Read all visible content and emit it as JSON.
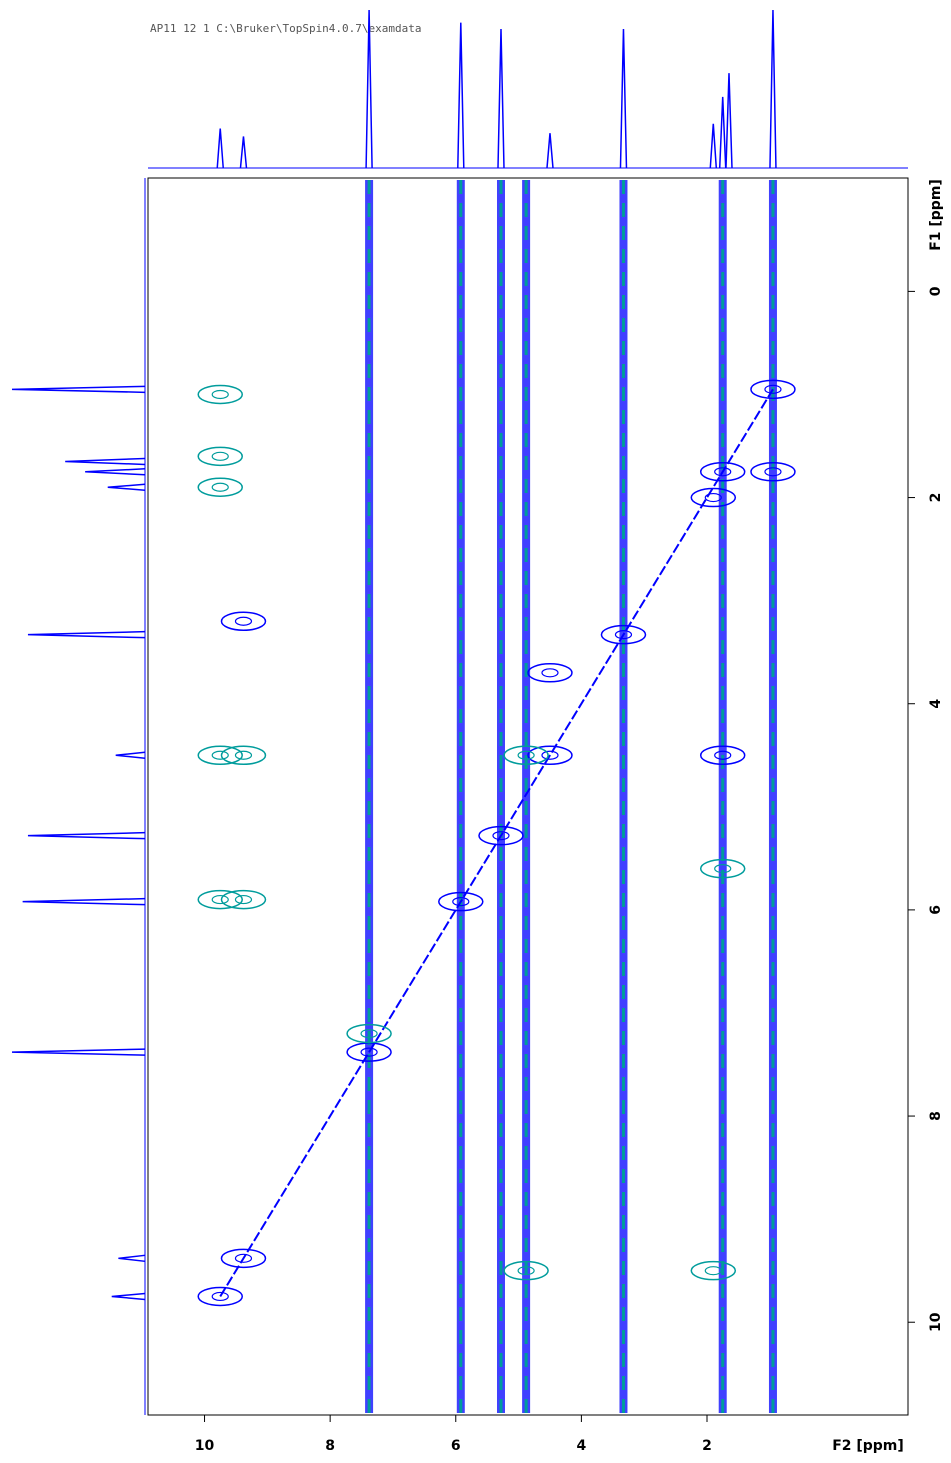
{
  "chart_data": {
    "type": "contour",
    "title": "AP11  12  1  C:\\Bruker\\TopSpin4.0.7\\examdata",
    "x_label": "F2 [ppm]",
    "y_label": "F1 [ppm]",
    "xlim": [
      10.9,
      -1.2
    ],
    "ylim": [
      -1.1,
      10.9
    ],
    "xticks": [
      10,
      8,
      6,
      4,
      2
    ],
    "yticks": [
      0,
      2,
      4,
      6,
      8,
      10
    ],
    "projection": {
      "color": "#0000ff",
      "x": [
        9.75,
        9.38,
        7.38,
        5.92,
        5.28,
        4.5,
        3.33,
        1.9,
        1.75,
        1.65,
        0.95
      ],
      "values": [
        25,
        20,
        100,
        92,
        88,
        22,
        88,
        28,
        45,
        60,
        100
      ]
    },
    "streaks": {
      "colors": [
        "#0000ff",
        "#009c9c"
      ],
      "x": [
        7.38,
        5.92,
        5.28,
        4.88,
        3.33,
        1.75,
        0.95
      ]
    },
    "series": [
      {
        "color": "#0000ff",
        "x": [
          9.75,
          9.38,
          7.38,
          5.92,
          5.28,
          4.5,
          3.33,
          1.75,
          0.95,
          9.38,
          1.75,
          4.5,
          1.9,
          0.95
        ],
        "y": [
          9.75,
          9.38,
          7.38,
          5.92,
          5.28,
          4.5,
          3.33,
          1.75,
          0.95,
          3.2,
          4.5,
          3.7,
          2.0,
          1.75
        ]
      },
      {
        "color": "#009c9c",
        "x": [
          9.75,
          9.75,
          9.75,
          9.75,
          9.38,
          9.75,
          9.38,
          7.38,
          1.75,
          4.88,
          4.88,
          1.9
        ],
        "y": [
          1.0,
          1.6,
          1.9,
          4.5,
          4.5,
          5.9,
          5.9,
          7.2,
          5.6,
          9.5,
          4.5,
          9.5
        ]
      }
    ]
  }
}
